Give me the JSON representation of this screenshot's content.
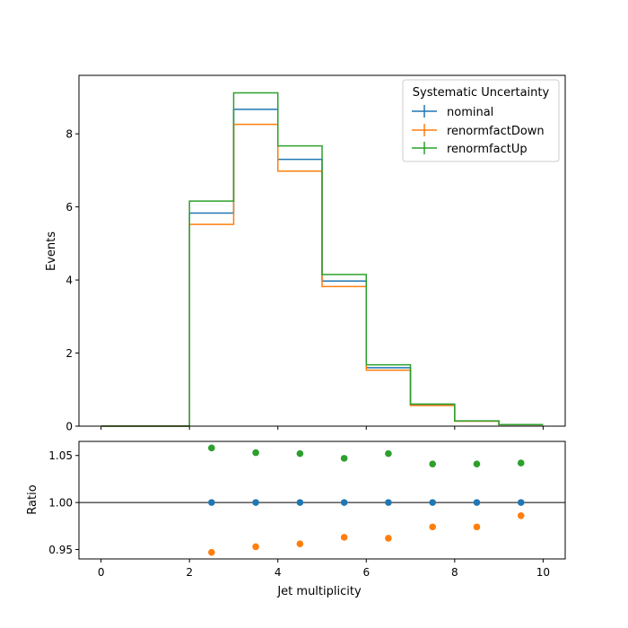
{
  "chart_data": [
    {
      "type": "line",
      "subtype": "step-histogram",
      "title": "",
      "xlabel": "",
      "ylabel": "Events",
      "xlim": [
        -0.5,
        10.5
      ],
      "ylim": [
        0,
        9.6
      ],
      "yticks": [
        "0",
        "2",
        "4",
        "6",
        "8"
      ],
      "bin_edges": [
        0,
        1,
        2,
        3,
        4,
        5,
        6,
        7,
        8,
        9,
        10
      ],
      "legend": {
        "title": "Systematic Uncertainty",
        "position": "top-right"
      },
      "series": [
        {
          "name": "nominal",
          "color": "#1f77b4",
          "values": [
            0,
            0,
            5.83,
            8.67,
            7.3,
            3.97,
            1.6,
            0.58,
            0.14,
            0.04
          ]
        },
        {
          "name": "renormfactDown",
          "color": "#ff7f0e",
          "values": [
            0,
            0,
            5.52,
            8.26,
            6.98,
            3.82,
            1.53,
            0.565,
            0.136,
            0.039
          ]
        },
        {
          "name": "renormfactUp",
          "color": "#2ca02c",
          "values": [
            0,
            0,
            6.16,
            9.12,
            7.67,
            4.15,
            1.68,
            0.604,
            0.145,
            0.042
          ]
        }
      ]
    },
    {
      "type": "scatter",
      "title": "",
      "xlabel": "Jet multiplicity",
      "ylabel": "Ratio",
      "xlim": [
        -0.5,
        10.5
      ],
      "ylim": [
        0.94,
        1.065
      ],
      "xticks": [
        "0",
        "2",
        "4",
        "6",
        "8",
        "10"
      ],
      "yticks": [
        "0.95",
        "1.00",
        "1.05"
      ],
      "reference_line": 1.0,
      "x": [
        2.5,
        3.5,
        4.5,
        5.5,
        6.5,
        7.5,
        8.5,
        9.5
      ],
      "series": [
        {
          "name": "nominal",
          "color": "#1f77b4",
          "values": [
            1.0,
            1.0,
            1.0,
            1.0,
            1.0,
            1.0,
            1.0,
            1.0
          ]
        },
        {
          "name": "renormfactDown",
          "color": "#ff7f0e",
          "values": [
            0.947,
            0.953,
            0.956,
            0.963,
            0.962,
            0.974,
            0.974,
            0.986
          ]
        },
        {
          "name": "renormfactUp",
          "color": "#2ca02c",
          "values": [
            1.058,
            1.053,
            1.052,
            1.047,
            1.052,
            1.041,
            1.041,
            1.042
          ]
        }
      ]
    }
  ]
}
